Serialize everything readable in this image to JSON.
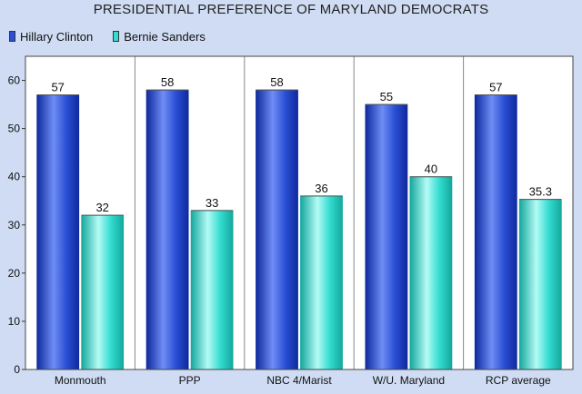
{
  "chart_data": {
    "type": "bar",
    "title": "PRESIDENTIAL PREFERENCE OF MARYLAND DEMOCRATS",
    "categories": [
      "Monmouth",
      "PPP",
      "NBC 4/Marist",
      "W/U. Maryland",
      "RCP average"
    ],
    "series": [
      {
        "name": "Hillary Clinton",
        "values": [
          57,
          58,
          58,
          55,
          57
        ],
        "value_labels": [
          "57",
          "58",
          "58",
          "55",
          "57"
        ],
        "color": "#2a4fd4"
      },
      {
        "name": "Bernie Sanders",
        "values": [
          32,
          33,
          36,
          40,
          35.3
        ],
        "value_labels": [
          "32",
          "33",
          "36",
          "40",
          "35.3"
        ],
        "color": "#33dcd0"
      }
    ],
    "ylim": [
      0,
      65
    ],
    "yticks": [
      0,
      10,
      20,
      30,
      40,
      50,
      60
    ],
    "ytick_labels": [
      "0",
      "10",
      "20",
      "30",
      "40",
      "50",
      "60"
    ],
    "xlabel": "",
    "ylabel": "",
    "grid": "vertical category dividers",
    "legend_position": "top-left",
    "background_color": "#cfdcf3",
    "plot_background_color": "#ffffff"
  }
}
